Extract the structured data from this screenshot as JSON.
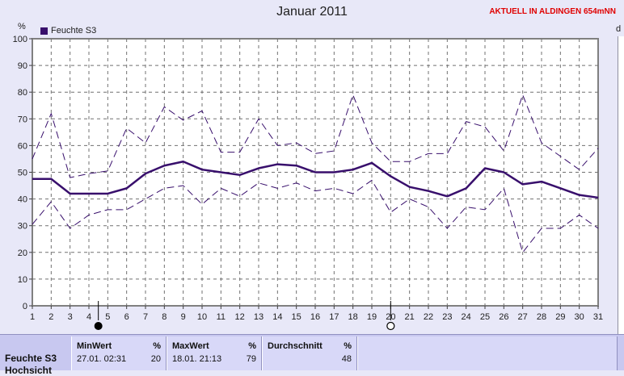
{
  "header": {
    "station": "AKTUELL IN ALDINGEN 654mNN",
    "edge_char": "d"
  },
  "chart_data": {
    "type": "line",
    "title": "Januar 2011",
    "ylabel": "%",
    "ylim": [
      0,
      100
    ],
    "yticks": [
      0,
      10,
      20,
      30,
      40,
      50,
      60,
      70,
      80,
      90,
      100
    ],
    "x": [
      1,
      2,
      3,
      4,
      5,
      6,
      7,
      8,
      9,
      10,
      11,
      12,
      13,
      14,
      15,
      16,
      17,
      18,
      19,
      20,
      21,
      22,
      23,
      24,
      25,
      26,
      27,
      28,
      29,
      30,
      31
    ],
    "xlim": [
      1,
      31
    ],
    "grid": true,
    "legend": "top-left",
    "series": [
      {
        "name": "Feuchte S3",
        "role": "mean",
        "color": "#380f6c",
        "values": [
          47.5,
          47.5,
          42,
          42,
          42,
          44,
          49.5,
          52.5,
          54,
          51,
          50,
          49,
          51.5,
          53,
          52.5,
          50,
          50,
          51,
          53.5,
          48.5,
          44.5,
          43,
          41,
          44,
          51.5,
          50,
          45.5,
          46.5,
          44,
          41.5,
          40.5
        ]
      },
      {
        "role": "max",
        "color": "#380f6c",
        "dashed": true,
        "values": [
          55,
          72,
          48,
          49.5,
          50.5,
          66.5,
          61,
          74.5,
          69.5,
          73,
          57.5,
          57.5,
          70,
          60,
          61,
          57,
          58,
          79,
          61,
          54,
          54,
          57,
          57,
          69,
          67,
          58,
          79,
          61,
          56,
          51,
          59
        ]
      },
      {
        "role": "min",
        "color": "#380f6c",
        "dashed": true,
        "values": [
          30.5,
          39,
          29,
          34,
          36,
          36,
          40,
          44,
          45,
          38,
          44,
          41,
          46,
          44,
          46,
          43,
          44,
          42,
          47,
          35,
          40,
          37,
          29,
          37,
          36,
          44,
          20,
          29,
          29,
          34,
          29
        ]
      }
    ],
    "moon_markers": [
      {
        "day": 4.5,
        "phase": "new"
      },
      {
        "day": 20,
        "phase": "full"
      }
    ]
  },
  "stats": {
    "row_label": "Feuchte S3",
    "row_label_partial": "Hochsicht",
    "min": {
      "header": "MinWert",
      "unit": "%",
      "datetime": "27.01.  02:31",
      "value": "20"
    },
    "max": {
      "header": "MaxWert",
      "unit": "%",
      "datetime": "18.01.  21:13",
      "value": "79"
    },
    "avg": {
      "header": "Durchschnitt",
      "unit": "%",
      "value": "48"
    }
  }
}
